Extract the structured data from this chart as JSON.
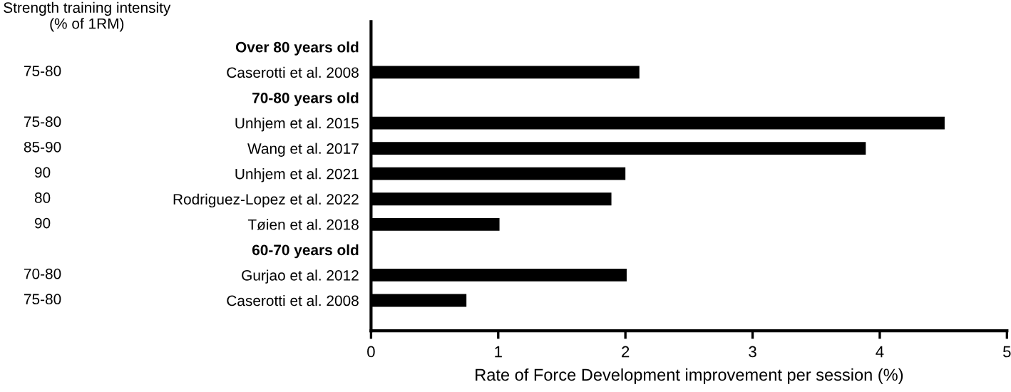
{
  "chart_data": {
    "type": "bar",
    "orientation": "horizontal",
    "ylabel": "Strength training intensity\n(% of 1RM)",
    "xlabel": "Rate of Force Development improvement per session (%)",
    "categories": [
      "Over 80 years old",
      "Caserotti et al. 2008",
      "70-80 years old",
      "Unhjem et al. 2015",
      "Wang et al. 2017",
      "Unhjem et al. 2021",
      "Rodriguez-Lopez et al. 2022",
      "Tøien et al. 2018",
      "60-70 years old",
      "Gurjao et al. 2012",
      "Caserotti et al. 2008"
    ],
    "y2_categories": [
      null,
      "75-80",
      null,
      "75-80",
      "85-90",
      "90",
      "80",
      "90",
      null,
      "70-80",
      "75-80"
    ],
    "values": [
      null,
      2.11,
      null,
      4.51,
      3.89,
      2.0,
      1.89,
      1.01,
      null,
      2.01,
      0.75
    ],
    "color": "#000000",
    "xlim": [
      0,
      5
    ],
    "xticks": [
      0,
      1,
      2,
      3,
      4,
      5
    ],
    "grid": false
  }
}
